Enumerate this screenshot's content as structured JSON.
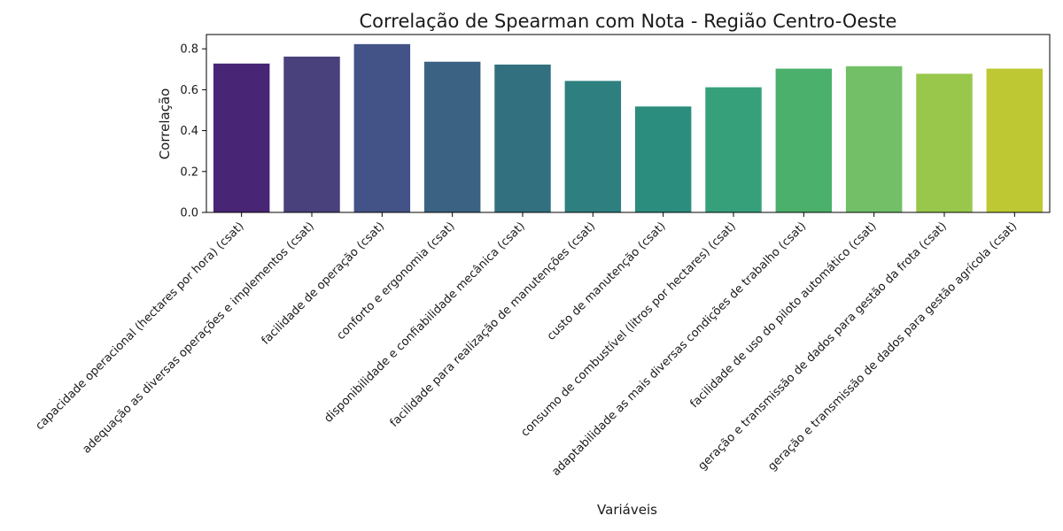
{
  "chart_data": {
    "type": "bar",
    "title": "Correlação de Spearman com Nota - Região Centro-Oeste",
    "xlabel": "Variáveis",
    "ylabel": "Correlação",
    "ylim": [
      0,
      0.87
    ],
    "yticks": [
      0.0,
      0.2,
      0.4,
      0.6,
      0.8
    ],
    "ytick_labels": [
      "0.0",
      "0.2",
      "0.4",
      "0.6",
      "0.8"
    ],
    "grid": false,
    "legend": "none",
    "categories": [
      "capacidade operacional (hectares por hora) (csat)",
      "adequação as diversas operações e implementos (csat)",
      "facilidade de operação (csat)",
      "conforto e ergonomia (csat)",
      "disponibilidade e confiabilidade mecânica  (csat)",
      "facilidade para realização de manutenções (csat)",
      "custo de manutenção (csat)",
      "consumo de combustível (litros por hectares) (csat)",
      "adaptabilidade as mais diversas condições de trabalho (csat)",
      "facilidade de uso do piloto automático (csat)",
      "geração e transmissão de dados para gestão da frota (csat)",
      "geração e transmissão de dados para gestão agrícola (csat)"
    ],
    "values": [
      0.728,
      0.762,
      0.823,
      0.737,
      0.723,
      0.643,
      0.518,
      0.612,
      0.703,
      0.715,
      0.678,
      0.703
    ],
    "colors": [
      "#482575",
      "#48417c",
      "#435287",
      "#3b6282",
      "#33707f",
      "#2e7f7f",
      "#2b8d7e",
      "#36a07b",
      "#4bb06b",
      "#72bf68",
      "#98c74c",
      "#bdc832"
    ]
  }
}
